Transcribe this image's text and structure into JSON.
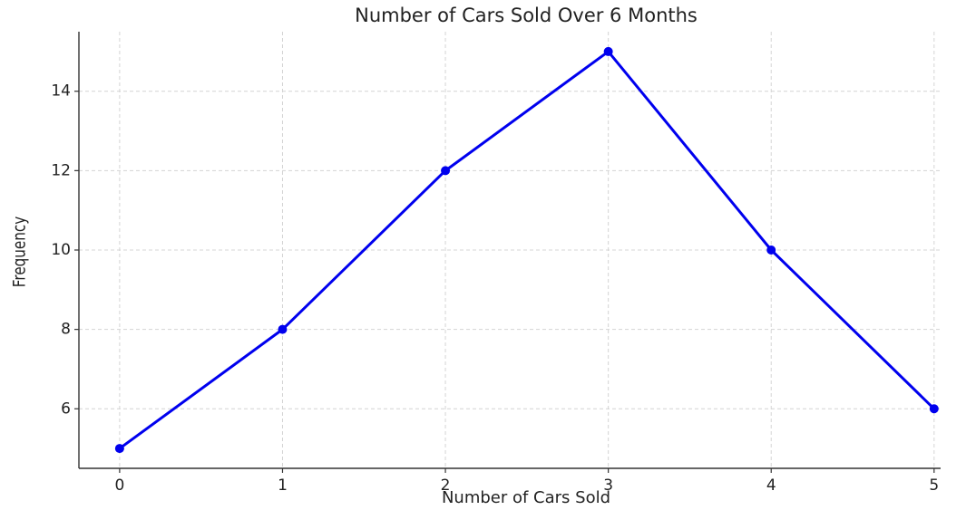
{
  "chart_data": {
    "type": "line",
    "title": "Number of Cars Sold Over 6 Months",
    "x_label": "Number of Cars Sold",
    "y_label": "Frequency",
    "x": [
      0,
      1,
      2,
      3,
      4,
      5
    ],
    "series": [
      {
        "name": "Frequency",
        "color": "#0000ee",
        "values": [
          5,
          8,
          12,
          15,
          10,
          6
        ]
      }
    ],
    "xlim": [
      -0.25,
      5.04
    ],
    "ylim": [
      4.5,
      15.5
    ],
    "xticks": [
      0,
      1,
      2,
      3,
      4,
      5
    ],
    "yticks": [
      6,
      8,
      10,
      12,
      14
    ],
    "grid": true
  }
}
